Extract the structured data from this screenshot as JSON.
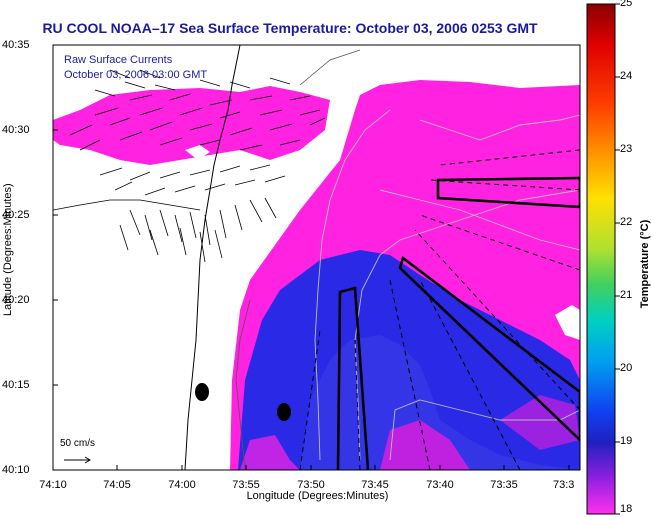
{
  "title": "RU COOL  NOAA–17  Sea Surface Temperature:  October 03, 2006 0253 GMT",
  "legend": {
    "line1": "Raw Surface Currents",
    "line2": "October 03, 2006 03:00 GMT"
  },
  "axes": {
    "ylabel": "Latitude (Degrees:Minutes)",
    "xlabel": "Longitude (Degrees:Minutes)",
    "yticks": [
      "40:35",
      "40:30",
      "40:25",
      "40:20",
      "40:15",
      "40:10"
    ],
    "xticks": [
      "74:10",
      "74:05",
      "74:00",
      "73:55",
      "73:50",
      "73:45",
      "73:40",
      "73:35",
      "73:3"
    ]
  },
  "colorbar": {
    "label": "Temperature (°C)",
    "ticks": [
      "25",
      "24",
      "23",
      "22",
      "21",
      "20",
      "19",
      "18"
    ],
    "range": [
      18,
      25
    ]
  },
  "scale_bar": {
    "label": "50 cm/s"
  },
  "colors": {
    "title": "#1a1aa0",
    "warm_water": "#ff22e0",
    "cool_water": "#2a2ae6",
    "land": "#ffffff"
  }
}
